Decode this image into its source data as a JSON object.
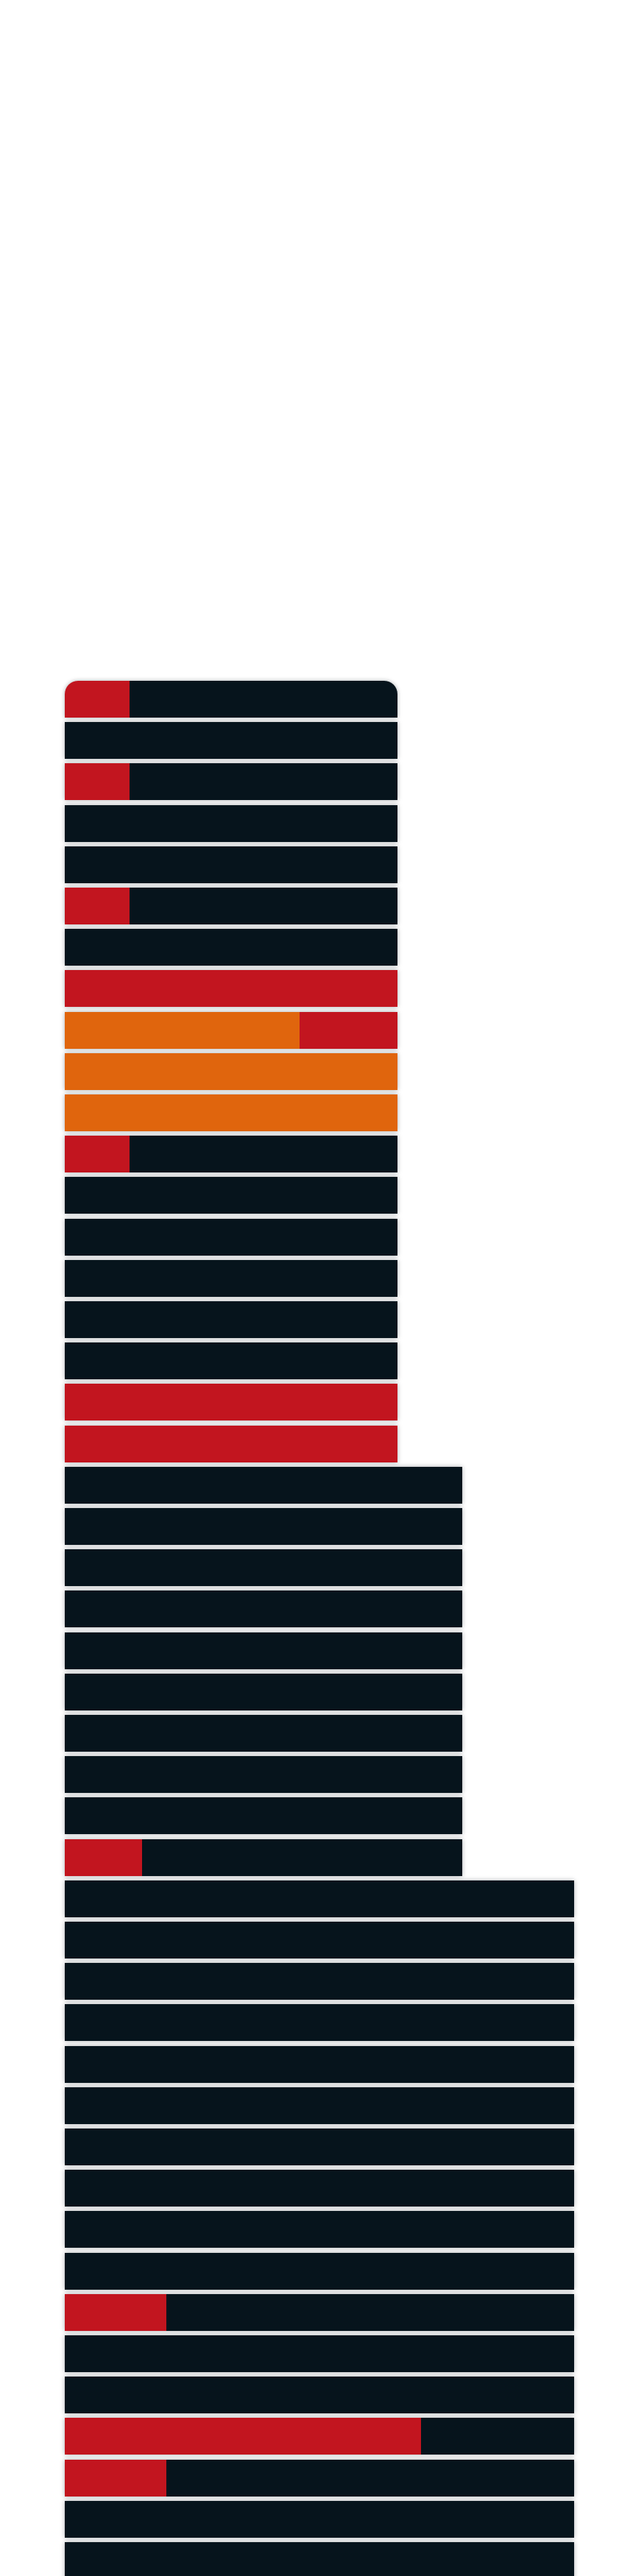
{
  "colors": {
    "background": "#ffffff",
    "dark": "#06141c",
    "red": "#c2151f",
    "orange": "#e0650d",
    "separator": "#e6e7ee"
  },
  "section_row_counts": [
    19,
    10,
    17
  ],
  "rows": [
    {
      "section": 0,
      "segments": [
        {
          "color": "red",
          "fraction": 0.195
        },
        {
          "color": "dark",
          "fraction": 0.805
        }
      ]
    },
    {
      "section": 0,
      "segments": [
        {
          "color": "dark",
          "fraction": 1.0
        }
      ]
    },
    {
      "section": 0,
      "segments": [
        {
          "color": "red",
          "fraction": 0.195
        },
        {
          "color": "dark",
          "fraction": 0.805
        }
      ]
    },
    {
      "section": 0,
      "segments": [
        {
          "color": "dark",
          "fraction": 1.0
        }
      ]
    },
    {
      "section": 0,
      "segments": [
        {
          "color": "dark",
          "fraction": 1.0
        }
      ]
    },
    {
      "section": 0,
      "segments": [
        {
          "color": "red",
          "fraction": 0.195
        },
        {
          "color": "dark",
          "fraction": 0.805
        }
      ]
    },
    {
      "section": 0,
      "segments": [
        {
          "color": "dark",
          "fraction": 1.0
        }
      ]
    },
    {
      "section": 0,
      "segments": [
        {
          "color": "red",
          "fraction": 1.0
        }
      ]
    },
    {
      "section": 0,
      "segments": [
        {
          "color": "orange",
          "fraction": 0.705
        },
        {
          "color": "red",
          "fraction": 0.295
        }
      ]
    },
    {
      "section": 0,
      "segments": [
        {
          "color": "orange",
          "fraction": 1.0
        }
      ]
    },
    {
      "section": 0,
      "segments": [
        {
          "color": "orange",
          "fraction": 1.0
        }
      ]
    },
    {
      "section": 0,
      "segments": [
        {
          "color": "red",
          "fraction": 0.195
        },
        {
          "color": "dark",
          "fraction": 0.805
        }
      ]
    },
    {
      "section": 0,
      "segments": [
        {
          "color": "dark",
          "fraction": 1.0
        }
      ]
    },
    {
      "section": 0,
      "segments": [
        {
          "color": "dark",
          "fraction": 1.0
        }
      ]
    },
    {
      "section": 0,
      "segments": [
        {
          "color": "dark",
          "fraction": 1.0
        }
      ]
    },
    {
      "section": 0,
      "segments": [
        {
          "color": "dark",
          "fraction": 1.0
        }
      ]
    },
    {
      "section": 0,
      "segments": [
        {
          "color": "dark",
          "fraction": 1.0
        }
      ]
    },
    {
      "section": 0,
      "segments": [
        {
          "color": "red",
          "fraction": 1.0
        }
      ]
    },
    {
      "section": 0,
      "segments": [
        {
          "color": "red",
          "fraction": 1.0
        }
      ]
    },
    {
      "section": 1,
      "segments": [
        {
          "color": "dark",
          "fraction": 1.0
        }
      ]
    },
    {
      "section": 1,
      "segments": [
        {
          "color": "dark",
          "fraction": 1.0
        }
      ]
    },
    {
      "section": 1,
      "segments": [
        {
          "color": "dark",
          "fraction": 1.0
        }
      ]
    },
    {
      "section": 1,
      "segments": [
        {
          "color": "dark",
          "fraction": 1.0
        }
      ]
    },
    {
      "section": 1,
      "segments": [
        {
          "color": "dark",
          "fraction": 1.0
        }
      ]
    },
    {
      "section": 1,
      "segments": [
        {
          "color": "dark",
          "fraction": 1.0
        }
      ]
    },
    {
      "section": 1,
      "segments": [
        {
          "color": "dark",
          "fraction": 1.0
        }
      ]
    },
    {
      "section": 1,
      "segments": [
        {
          "color": "dark",
          "fraction": 1.0
        }
      ]
    },
    {
      "section": 1,
      "segments": [
        {
          "color": "dark",
          "fraction": 1.0
        }
      ]
    },
    {
      "section": 1,
      "segments": [
        {
          "color": "red",
          "fraction": 0.195
        },
        {
          "color": "dark",
          "fraction": 0.805
        }
      ]
    },
    {
      "section": 2,
      "segments": [
        {
          "color": "dark",
          "fraction": 1.0
        }
      ]
    },
    {
      "section": 2,
      "segments": [
        {
          "color": "dark",
          "fraction": 1.0
        }
      ]
    },
    {
      "section": 2,
      "segments": [
        {
          "color": "dark",
          "fraction": 1.0
        }
      ]
    },
    {
      "section": 2,
      "segments": [
        {
          "color": "dark",
          "fraction": 1.0
        }
      ]
    },
    {
      "section": 2,
      "segments": [
        {
          "color": "dark",
          "fraction": 1.0
        }
      ]
    },
    {
      "section": 2,
      "segments": [
        {
          "color": "dark",
          "fraction": 1.0
        }
      ]
    },
    {
      "section": 2,
      "segments": [
        {
          "color": "dark",
          "fraction": 1.0
        }
      ]
    },
    {
      "section": 2,
      "segments": [
        {
          "color": "dark",
          "fraction": 1.0
        }
      ]
    },
    {
      "section": 2,
      "segments": [
        {
          "color": "dark",
          "fraction": 1.0
        }
      ]
    },
    {
      "section": 2,
      "segments": [
        {
          "color": "dark",
          "fraction": 1.0
        }
      ]
    },
    {
      "section": 2,
      "segments": [
        {
          "color": "red",
          "fraction": 0.2
        },
        {
          "color": "dark",
          "fraction": 0.8
        }
      ]
    },
    {
      "section": 2,
      "segments": [
        {
          "color": "dark",
          "fraction": 1.0
        }
      ]
    },
    {
      "section": 2,
      "segments": [
        {
          "color": "dark",
          "fraction": 1.0
        }
      ]
    },
    {
      "section": 2,
      "segments": [
        {
          "color": "red",
          "fraction": 0.7
        },
        {
          "color": "dark",
          "fraction": 0.3
        }
      ]
    },
    {
      "section": 2,
      "segments": [
        {
          "color": "red",
          "fraction": 0.2
        },
        {
          "color": "dark",
          "fraction": 0.8
        }
      ]
    },
    {
      "section": 2,
      "segments": [
        {
          "color": "dark",
          "fraction": 1.0
        }
      ]
    },
    {
      "section": 2,
      "segments": [
        {
          "color": "dark",
          "fraction": 1.0
        }
      ]
    }
  ]
}
